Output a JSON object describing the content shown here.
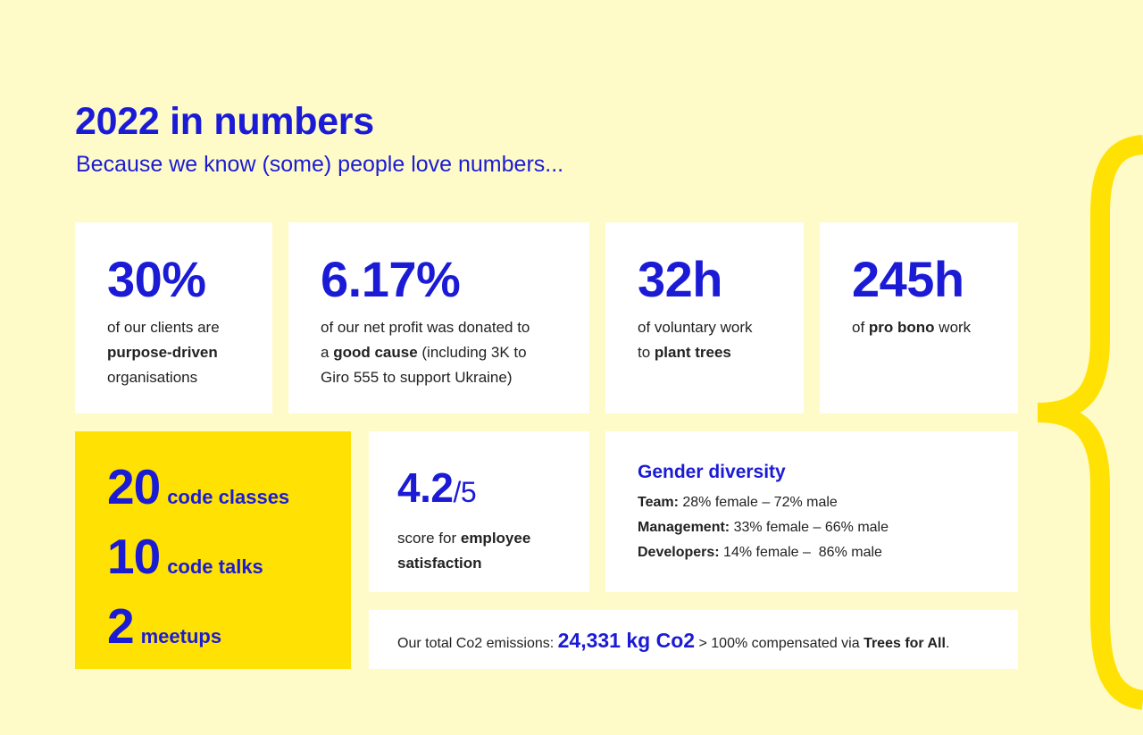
{
  "header": {
    "title": "2022 in numbers",
    "subtitle": "Because we know (some) people love numbers..."
  },
  "cards": [
    {
      "figure": "30%",
      "lines": [
        [
          {
            "text": "of our clients are"
          }
        ],
        [
          {
            "text": "purpose-driven",
            "emphasis": "bold"
          }
        ],
        [
          {
            "text": "organisations"
          }
        ]
      ]
    },
    {
      "figure": "6.17%",
      "lines": [
        [
          {
            "text": "of our net profit was donated to"
          }
        ],
        [
          {
            "text": "a "
          },
          {
            "text": "good cause",
            "emphasis": "bold"
          },
          {
            "text": " (including 3K to"
          }
        ],
        [
          {
            "text": "Giro 555 to support Ukraine)"
          }
        ]
      ]
    },
    {
      "figure": "32h",
      "lines": [
        [
          {
            "text": "of voluntary work"
          }
        ],
        [
          {
            "text": "to "
          },
          {
            "text": "plant trees",
            "emphasis": "bold"
          }
        ]
      ]
    },
    {
      "figure": "245h",
      "lines": [
        [
          {
            "text": "of "
          },
          {
            "text": "pro bono",
            "emphasis": "bold"
          },
          {
            "text": " work"
          }
        ]
      ]
    }
  ],
  "events": [
    {
      "number": "20",
      "label": "code classes"
    },
    {
      "number": "10",
      "label": "code talks"
    },
    {
      "number": "2",
      "label": "meetups"
    }
  ],
  "satisfaction": {
    "figure": "4.2",
    "suffix": "/5",
    "lines": [
      [
        {
          "text": "score for "
        },
        {
          "text": "employee",
          "emphasis": "bold"
        }
      ],
      [
        {
          "text": "satisfaction",
          "emphasis": "bold"
        }
      ]
    ]
  },
  "gender_diversity": {
    "heading": "Gender diversity",
    "rows": [
      {
        "label": "Team:",
        "text": " 28% female – 72% male"
      },
      {
        "label": "Management:",
        "text": " 33% female – 66% male"
      },
      {
        "label": "Developers:",
        "text": " 14% female –  86% male"
      }
    ]
  },
  "emissions": {
    "lines": [
      [
        {
          "text": "Our total Co2 emissions: "
        },
        {
          "text": "24,331 kg Co2",
          "emphasis": "figure"
        },
        {
          "text": " > 100% compensated via "
        },
        {
          "text": "Trees for All",
          "emphasis": "bold"
        },
        {
          "text": "."
        }
      ]
    ]
  }
}
